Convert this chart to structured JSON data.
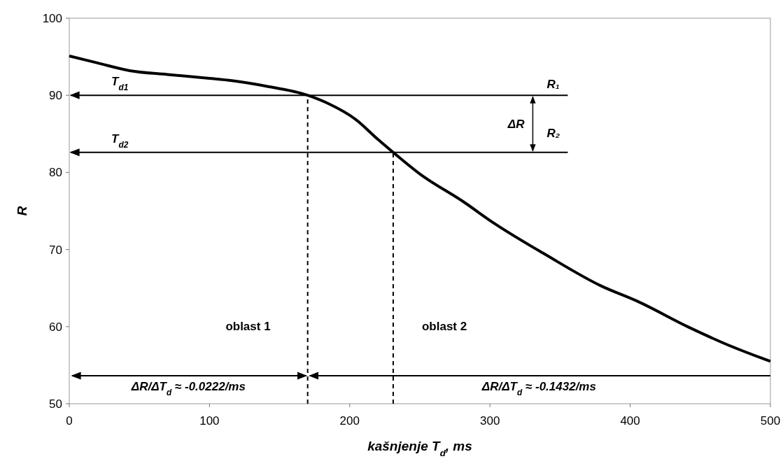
{
  "chart_data": {
    "type": "line",
    "xlabel": "kašnjenje T$_{d}$, ms",
    "ylabel": "R",
    "xlim": [
      0,
      500
    ],
    "xticks": [
      0,
      100,
      200,
      300,
      400,
      500
    ],
    "ylim": [
      50,
      100
    ],
    "yticks": [
      50,
      60,
      70,
      80,
      90,
      100
    ],
    "grid": false,
    "series": [
      {
        "color": "#000000",
        "x": [
          0,
          20,
          43,
          70,
          100,
          116,
          140,
          170,
          185,
          204,
          220,
          231,
          250,
          281,
          303,
          340,
          379,
          405,
          442,
          470,
          500
        ],
        "values": [
          95.1,
          94.2,
          93.2,
          92.7,
          92.2,
          91.9,
          91.2,
          90.0,
          88.9,
          86.9,
          84.3,
          82.6,
          79.8,
          76.2,
          73.4,
          69.3,
          65.3,
          63.3,
          59.9,
          57.6,
          55.5
        ]
      }
    ],
    "ref_lines": [
      {
        "axis": "y",
        "value": 90,
        "label": "R₁",
        "line_style": "solid",
        "color": "#000000"
      },
      {
        "axis": "y",
        "value": 82.6,
        "label": "R₂",
        "line_style": "solid",
        "color": "#000000"
      },
      {
        "axis": "x",
        "value": 170,
        "line_style": "dashed",
        "color": "#000000"
      },
      {
        "axis": "x",
        "value": 231,
        "line_style": "dashed",
        "color": "#000000"
      }
    ],
    "annotations": [
      {
        "text": "T$_{d1}$",
        "x": 30,
        "y": 90
      },
      {
        "text": "T$_{d2}$",
        "x": 30,
        "y": 82.6
      },
      "ΔR",
      "oblast 1",
      "oblast 2",
      "ΔR/ΔT$_{d}$ ≈ -0.0222/ms",
      "ΔR/ΔT$_{d}$ ≈ -0.1432/ms"
    ]
  }
}
